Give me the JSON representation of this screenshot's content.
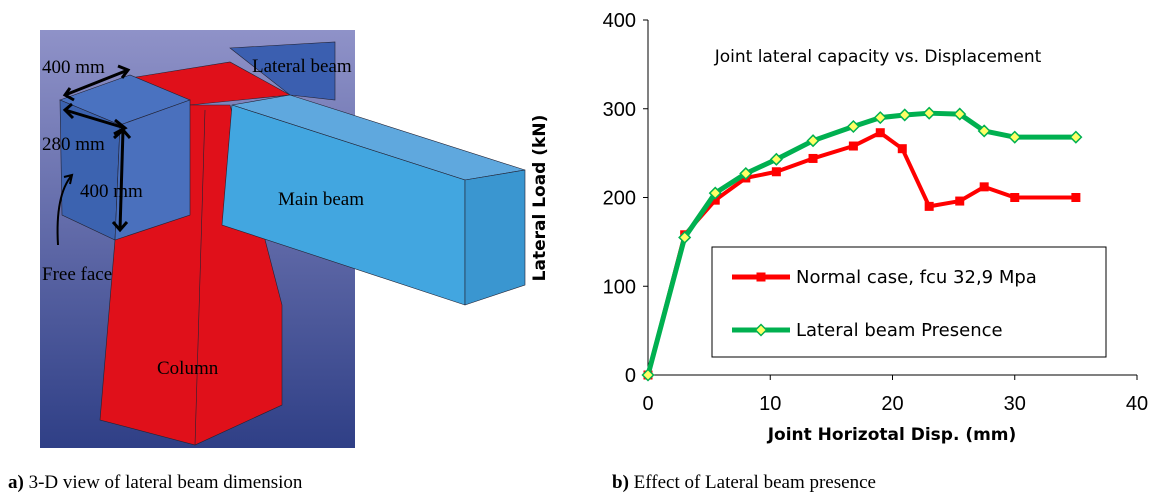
{
  "diagram": {
    "labels": [
      "400 mm",
      "Lateral  beam",
      "280 mm",
      "400 mm",
      "Main beam",
      "Free face",
      "Column"
    ]
  },
  "captions": [
    {
      "label": "a)",
      "text": "3-D view of lateral beam dimension"
    },
    {
      "label": "b)",
      "text": "Effect of Lateral beam presence"
    }
  ],
  "chart_data": {
    "type": "line",
    "title": "Joint lateral capacity vs. Displacement",
    "x_label": "Joint Horizotal Disp. (mm)",
    "y_label": "Lateral Load (kN)",
    "xlim": [
      0,
      40
    ],
    "xticks": [
      0,
      10,
      20,
      30,
      40
    ],
    "ylim": [
      0,
      400
    ],
    "yticks": [
      0,
      100,
      200,
      300,
      400
    ],
    "series": [
      {
        "name": "Normal case, fcu 32,9 Mpa",
        "color": "#ff0000",
        "marker": "square",
        "x": [
          0,
          3,
          5.5,
          8,
          10.5,
          13.5,
          16.8,
          19,
          20.8,
          23,
          25.5,
          27.5,
          30,
          35
        ],
        "values": [
          0,
          158,
          197,
          222,
          229,
          244,
          258,
          273,
          255,
          190,
          196,
          212,
          200,
          200
        ]
      },
      {
        "name": "Lateral beam Presence",
        "color": "#00b050",
        "marker": "diamond",
        "x": [
          0,
          3,
          5.5,
          8,
          10.5,
          13.5,
          16.8,
          19,
          21,
          23,
          25.5,
          27.5,
          30,
          35
        ],
        "values": [
          0,
          155,
          205,
          227,
          243,
          264,
          280,
          290,
          293,
          295,
          294,
          275,
          268,
          268
        ]
      }
    ]
  }
}
